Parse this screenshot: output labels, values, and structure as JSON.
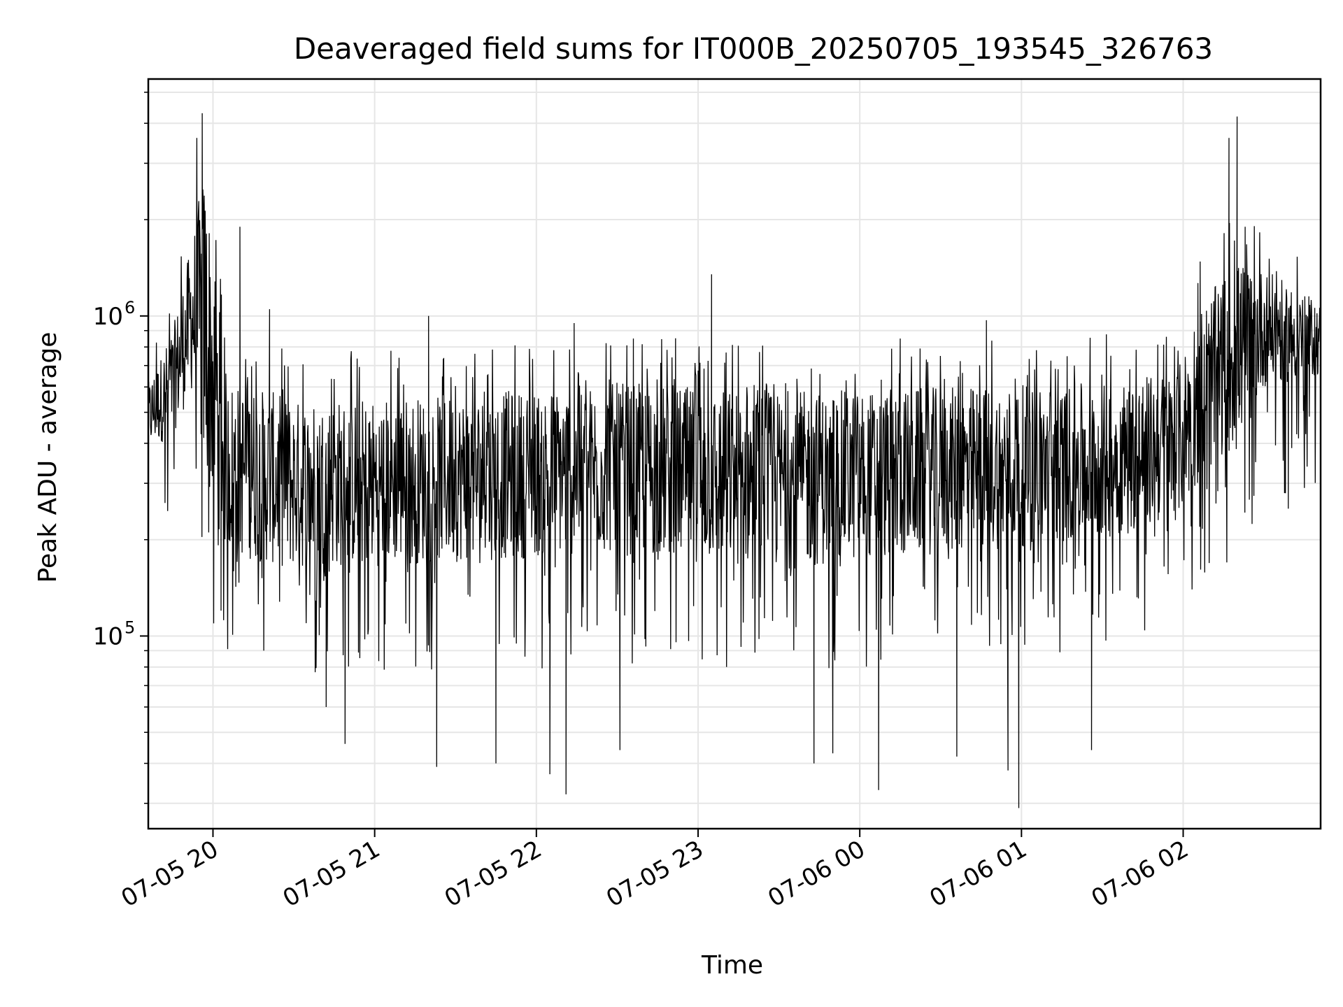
{
  "chart_data": {
    "type": "line",
    "title": "Deaveraged field sums for IT000B_20250705_193545_326763",
    "xlabel": "Time",
    "ylabel": "Peak ADU - average",
    "x_start": "2025-07-05T19:36",
    "x_end": "2025-07-06T02:51",
    "x_ticks": [
      "07-05 20",
      "07-05 21",
      "07-05 22",
      "07-05 23",
      "07-06 00",
      "07-06 01",
      "07-06 02"
    ],
    "y_scale": "log",
    "y_ticks": [
      {
        "base": "10",
        "exp": "5",
        "value": 100000
      },
      {
        "base": "10",
        "exp": "6",
        "value": 1000000
      }
    ],
    "ylim": [
      25000,
      5500000
    ],
    "grid": true,
    "line_color": "#000000",
    "envelope": [
      {
        "t": "2025-07-05T19:36",
        "upper": 620000,
        "lower": 380000
      },
      {
        "t": "2025-07-05T19:45",
        "upper": 900000,
        "lower": 420000
      },
      {
        "t": "2025-07-05T19:52",
        "upper": 1700000,
        "lower": 580000
      },
      {
        "t": "2025-07-05T19:57",
        "upper": 3000000,
        "lower": 300000
      },
      {
        "t": "2025-07-05T20:05",
        "upper": 650000,
        "lower": 180000
      },
      {
        "t": "2025-07-05T20:30",
        "upper": 550000,
        "lower": 160000
      },
      {
        "t": "2025-07-05T21:30",
        "upper": 570000,
        "lower": 170000
      },
      {
        "t": "2025-07-05T22:30",
        "upper": 620000,
        "lower": 180000
      },
      {
        "t": "2025-07-05T23:30",
        "upper": 580000,
        "lower": 160000
      },
      {
        "t": "2025-07-06T00:30",
        "upper": 600000,
        "lower": 180000
      },
      {
        "t": "2025-07-06T01:30",
        "upper": 620000,
        "lower": 200000
      },
      {
        "t": "2025-07-06T01:58",
        "upper": 680000,
        "lower": 230000
      },
      {
        "t": "2025-07-06T02:05",
        "upper": 1050000,
        "lower": 300000
      },
      {
        "t": "2025-07-06T02:20",
        "upper": 1500000,
        "lower": 400000
      },
      {
        "t": "2025-07-06T02:30",
        "upper": 1400000,
        "lower": 600000
      },
      {
        "t": "2025-07-06T02:51",
        "upper": 1100000,
        "lower": 650000
      }
    ],
    "spikes": [
      {
        "t": "2025-07-05T19:54",
        "value": 3600000
      },
      {
        "t": "2025-07-05T19:56",
        "value": 4300000
      },
      {
        "t": "2025-07-05T20:03",
        "value": 120000
      },
      {
        "t": "2025-07-05T20:10",
        "value": 1900000
      },
      {
        "t": "2025-07-05T20:21",
        "value": 1050000
      },
      {
        "t": "2025-07-05T20:42",
        "value": 60000
      },
      {
        "t": "2025-07-05T20:49",
        "value": 46000
      },
      {
        "t": "2025-07-05T21:20",
        "value": 1000000
      },
      {
        "t": "2025-07-05T21:23",
        "value": 39000
      },
      {
        "t": "2025-07-05T21:45",
        "value": 40000
      },
      {
        "t": "2025-07-05T22:05",
        "value": 37000
      },
      {
        "t": "2025-07-05T22:11",
        "value": 32000
      },
      {
        "t": "2025-07-05T22:14",
        "value": 950000
      },
      {
        "t": "2025-07-05T22:31",
        "value": 44000
      },
      {
        "t": "2025-07-05T22:36",
        "value": 850000
      },
      {
        "t": "2025-07-05T23:05",
        "value": 1350000
      },
      {
        "t": "2025-07-05T23:43",
        "value": 40000
      },
      {
        "t": "2025-07-05T23:50",
        "value": 43000
      },
      {
        "t": "2025-07-06T00:07",
        "value": 33000
      },
      {
        "t": "2025-07-06T00:15",
        "value": 850000
      },
      {
        "t": "2025-07-06T00:36",
        "value": 42000
      },
      {
        "t": "2025-07-06T00:47",
        "value": 970000
      },
      {
        "t": "2025-07-06T00:55",
        "value": 38000
      },
      {
        "t": "2025-07-06T00:59",
        "value": 29000
      },
      {
        "t": "2025-07-06T01:26",
        "value": 44000
      },
      {
        "t": "2025-07-06T02:17",
        "value": 3600000
      },
      {
        "t": "2025-07-06T02:20",
        "value": 4200000
      },
      {
        "t": "2025-07-06T02:23",
        "value": 1900000
      },
      {
        "t": "2025-07-06T02:39",
        "value": 250000
      }
    ]
  }
}
